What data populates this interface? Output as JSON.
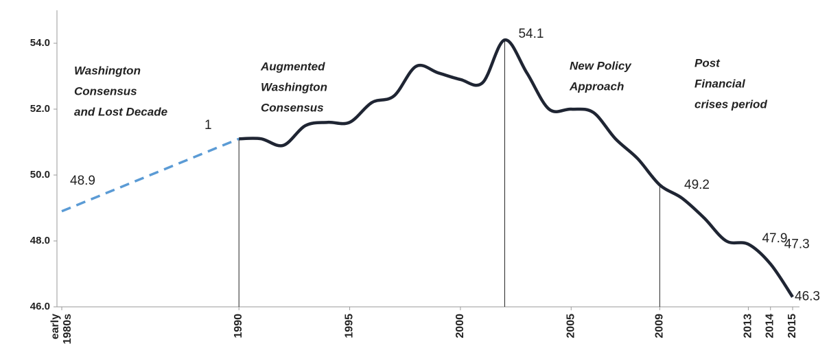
{
  "chart_data": {
    "type": "line",
    "categories": [
      "early 1980s",
      null,
      null,
      null,
      null,
      null,
      null,
      null,
      "1990",
      null,
      null,
      null,
      null,
      "1995",
      null,
      null,
      null,
      null,
      "2000",
      null,
      null,
      null,
      null,
      "2005",
      null,
      null,
      null,
      "2009",
      null,
      null,
      null,
      "2013",
      "2014",
      "2015"
    ],
    "series": [
      {
        "color": "#5b9bd5",
        "style": "dashed",
        "values": [
          48.9,
          null,
          null,
          null,
          null,
          null,
          null,
          null,
          51.1,
          null,
          null,
          null,
          null,
          null,
          null,
          null,
          null,
          null,
          null,
          null,
          null,
          null,
          null,
          null,
          null,
          null,
          null,
          null,
          null,
          null,
          null,
          null,
          null,
          null
        ],
        "value_labels": [
          "48.9",
          null,
          null,
          null,
          null,
          null,
          null,
          null,
          null,
          null,
          null,
          null,
          null,
          null,
          null,
          null,
          null,
          null,
          null,
          null,
          null,
          null,
          null,
          null,
          null,
          null,
          null,
          null,
          null,
          null,
          null,
          null,
          null,
          null
        ]
      },
      {
        "color": "#1f2533",
        "style": "solid",
        "values": [
          null,
          null,
          null,
          null,
          null,
          null,
          null,
          null,
          51.1,
          51.1,
          50.9,
          51.5,
          51.6,
          51.6,
          52.2,
          52.4,
          53.3,
          53.1,
          52.9,
          52.8,
          54.1,
          53.1,
          52.0,
          52.0,
          51.9,
          51.1,
          50.5,
          49.7,
          49.3,
          48.7,
          48.0,
          47.9,
          47.3,
          46.3
        ],
        "value_labels": [
          null,
          null,
          null,
          null,
          null,
          null,
          null,
          null,
          null,
          null,
          null,
          null,
          null,
          null,
          null,
          null,
          null,
          null,
          null,
          null,
          "54.1",
          null,
          null,
          null,
          null,
          null,
          null,
          null,
          null,
          null,
          null,
          "47.9",
          "47.3",
          "46.3"
        ]
      }
    ],
    "ylim": [
      46,
      55
    ],
    "yticks": [
      {
        "value": 46,
        "label": "46.0"
      },
      {
        "value": 48,
        "label": "48.0"
      },
      {
        "value": 50,
        "label": "50.0"
      },
      {
        "value": 52,
        "label": "52.0"
      },
      {
        "value": 54,
        "label": "54.0"
      }
    ],
    "grid": false,
    "point_annotations": [
      "1",
      "49.2"
    ],
    "annotations": [
      [
        "Washington",
        "Consensus",
        "and Lost Decade"
      ],
      [
        "Augmented",
        "Washington",
        "Consensus"
      ],
      [
        "New Policy",
        "Approach"
      ],
      [
        "Post",
        "Financial",
        "crises period"
      ]
    ]
  }
}
